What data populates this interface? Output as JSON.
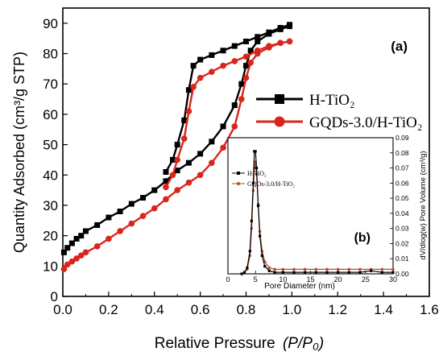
{
  "chart_data": [
    {
      "type": "line",
      "panel_label": "(a)",
      "xlabel": "Relative Pressure",
      "xlabel_math": "(P/P₀)",
      "ylabel": "Quantity Adsorbed (cm³/g STP)",
      "xlim": [
        0,
        1.6
      ],
      "ylim": [
        0,
        95
      ],
      "xticks": [
        "0.0",
        "0.2",
        "0.4",
        "0.6",
        "0.8",
        "1.0",
        "1.2",
        "1.4",
        "1.6"
      ],
      "yticks": [
        "0",
        "10",
        "20",
        "30",
        "40",
        "50",
        "60",
        "70",
        "80",
        "90"
      ],
      "grid": false,
      "legend_position": "center-right",
      "series": [
        {
          "name": "H-TiO₂",
          "color": "#000000",
          "marker": "square",
          "adsorption": [
            [
              0.005,
              14.5
            ],
            [
              0.02,
              16.0
            ],
            [
              0.04,
              17.5
            ],
            [
              0.06,
              19.0
            ],
            [
              0.08,
              20.0
            ],
            [
              0.1,
              21.5
            ],
            [
              0.15,
              23.5
            ],
            [
              0.2,
              26.0
            ],
            [
              0.25,
              28.0
            ],
            [
              0.3,
              30.5
            ],
            [
              0.35,
              32.5
            ],
            [
              0.4,
              35.0
            ],
            [
              0.45,
              38.0
            ],
            [
              0.5,
              41.5
            ],
            [
              0.55,
              44.0
            ],
            [
              0.6,
              47.0
            ],
            [
              0.65,
              51.0
            ],
            [
              0.7,
              56.0
            ],
            [
              0.75,
              63.0
            ],
            [
              0.78,
              70.0
            ],
            [
              0.8,
              76.0
            ],
            [
              0.82,
              81.0
            ],
            [
              0.85,
              84.0
            ],
            [
              0.9,
              86.5
            ],
            [
              0.95,
              88.0
            ],
            [
              0.99,
              89.0
            ]
          ],
          "desorption": [
            [
              0.99,
              89.5
            ],
            [
              0.95,
              88.5
            ],
            [
              0.9,
              87.0
            ],
            [
              0.85,
              85.5
            ],
            [
              0.8,
              84.0
            ],
            [
              0.75,
              82.5
            ],
            [
              0.7,
              81.0
            ],
            [
              0.65,
              79.5
            ],
            [
              0.6,
              78.0
            ],
            [
              0.57,
              76.0
            ],
            [
              0.55,
              68.0
            ],
            [
              0.53,
              58.0
            ],
            [
              0.5,
              50.0
            ],
            [
              0.48,
              45.0
            ],
            [
              0.45,
              41.0
            ]
          ]
        },
        {
          "name": "GQDs-3.0/H-TiO₂",
          "color": "#d9261c",
          "marker": "circle",
          "adsorption": [
            [
              0.005,
              9.0
            ],
            [
              0.02,
              10.5
            ],
            [
              0.04,
              11.5
            ],
            [
              0.06,
              12.5
            ],
            [
              0.08,
              13.5
            ],
            [
              0.1,
              14.5
            ],
            [
              0.15,
              16.5
            ],
            [
              0.2,
              19.0
            ],
            [
              0.25,
              21.5
            ],
            [
              0.3,
              24.0
            ],
            [
              0.35,
              26.5
            ],
            [
              0.4,
              29.0
            ],
            [
              0.45,
              32.0
            ],
            [
              0.5,
              35.0
            ],
            [
              0.55,
              37.5
            ],
            [
              0.6,
              40.0
            ],
            [
              0.65,
              44.0
            ],
            [
              0.7,
              49.0
            ],
            [
              0.75,
              56.0
            ],
            [
              0.78,
              65.0
            ],
            [
              0.8,
              72.0
            ],
            [
              0.82,
              77.0
            ],
            [
              0.85,
              80.0
            ],
            [
              0.9,
              82.0
            ],
            [
              0.95,
              83.5
            ],
            [
              0.99,
              84.0
            ]
          ],
          "desorption": [
            [
              0.99,
              84.0
            ],
            [
              0.95,
              83.5
            ],
            [
              0.9,
              82.5
            ],
            [
              0.85,
              81.0
            ],
            [
              0.8,
              79.0
            ],
            [
              0.75,
              77.5
            ],
            [
              0.7,
              76.0
            ],
            [
              0.65,
              74.0
            ],
            [
              0.6,
              72.0
            ],
            [
              0.57,
              69.0
            ],
            [
              0.55,
              61.0
            ],
            [
              0.53,
              52.0
            ],
            [
              0.5,
              45.0
            ],
            [
              0.48,
              40.0
            ],
            [
              0.45,
              36.0
            ]
          ]
        }
      ]
    },
    {
      "type": "line",
      "panel_label": "(b)",
      "xlabel": "Pore Diameter (nm)",
      "ylabel": "dV/dlog(w) Pore Volume (cm³/g)",
      "xlim": [
        0,
        30
      ],
      "ylim": [
        0,
        0.09
      ],
      "xticks": [
        "0",
        "5",
        "10",
        "15",
        "20",
        "25",
        "30"
      ],
      "yticks": [
        "0.00",
        "0.01",
        "0.02",
        "0.03",
        "0.04",
        "0.05",
        "0.06",
        "0.07",
        "0.08",
        "0.09"
      ],
      "grid": false,
      "legend_position": "top-left",
      "series": [
        {
          "name": "H-TiO₂",
          "color": "#000000",
          "marker": "square",
          "points": [
            [
              2.5,
              0.0
            ],
            [
              3.0,
              0.001
            ],
            [
              3.5,
              0.004
            ],
            [
              4.0,
              0.015
            ],
            [
              4.3,
              0.035
            ],
            [
              4.6,
              0.06
            ],
            [
              4.8,
              0.081
            ],
            [
              5.0,
              0.081
            ],
            [
              5.2,
              0.07
            ],
            [
              5.5,
              0.045
            ],
            [
              5.8,
              0.025
            ],
            [
              6.2,
              0.012
            ],
            [
              6.7,
              0.005
            ],
            [
              7.5,
              0.002
            ],
            [
              8.5,
              0.001
            ],
            [
              10,
              0.001
            ],
            [
              12,
              0.001
            ],
            [
              14,
              0.001
            ],
            [
              16,
              0.001
            ],
            [
              18,
              0.001
            ],
            [
              20,
              0.001
            ],
            [
              22,
              0.001
            ],
            [
              24,
              0.001
            ],
            [
              26,
              0.002
            ],
            [
              28,
              0.001
            ],
            [
              30,
              0.001
            ]
          ]
        },
        {
          "name": "GQDs-3.0/H-TiO₂",
          "color": "#b84a2a",
          "marker": "circle",
          "points": [
            [
              2.5,
              0.0
            ],
            [
              3.0,
              0.001
            ],
            [
              3.5,
              0.003
            ],
            [
              4.0,
              0.012
            ],
            [
              4.3,
              0.03
            ],
            [
              4.6,
              0.055
            ],
            [
              4.8,
              0.07
            ],
            [
              5.0,
              0.074
            ],
            [
              5.2,
              0.066
            ],
            [
              5.5,
              0.046
            ],
            [
              5.8,
              0.028
            ],
            [
              6.2,
              0.015
            ],
            [
              6.7,
              0.008
            ],
            [
              7.5,
              0.004
            ],
            [
              8.5,
              0.003
            ],
            [
              10,
              0.003
            ],
            [
              12,
              0.003
            ],
            [
              14,
              0.003
            ],
            [
              16,
              0.003
            ],
            [
              18,
              0.003
            ],
            [
              20,
              0.003
            ],
            [
              22,
              0.003
            ],
            [
              24,
              0.003
            ],
            [
              26,
              0.003
            ],
            [
              28,
              0.003
            ],
            [
              30,
              0.003
            ]
          ]
        }
      ]
    }
  ]
}
